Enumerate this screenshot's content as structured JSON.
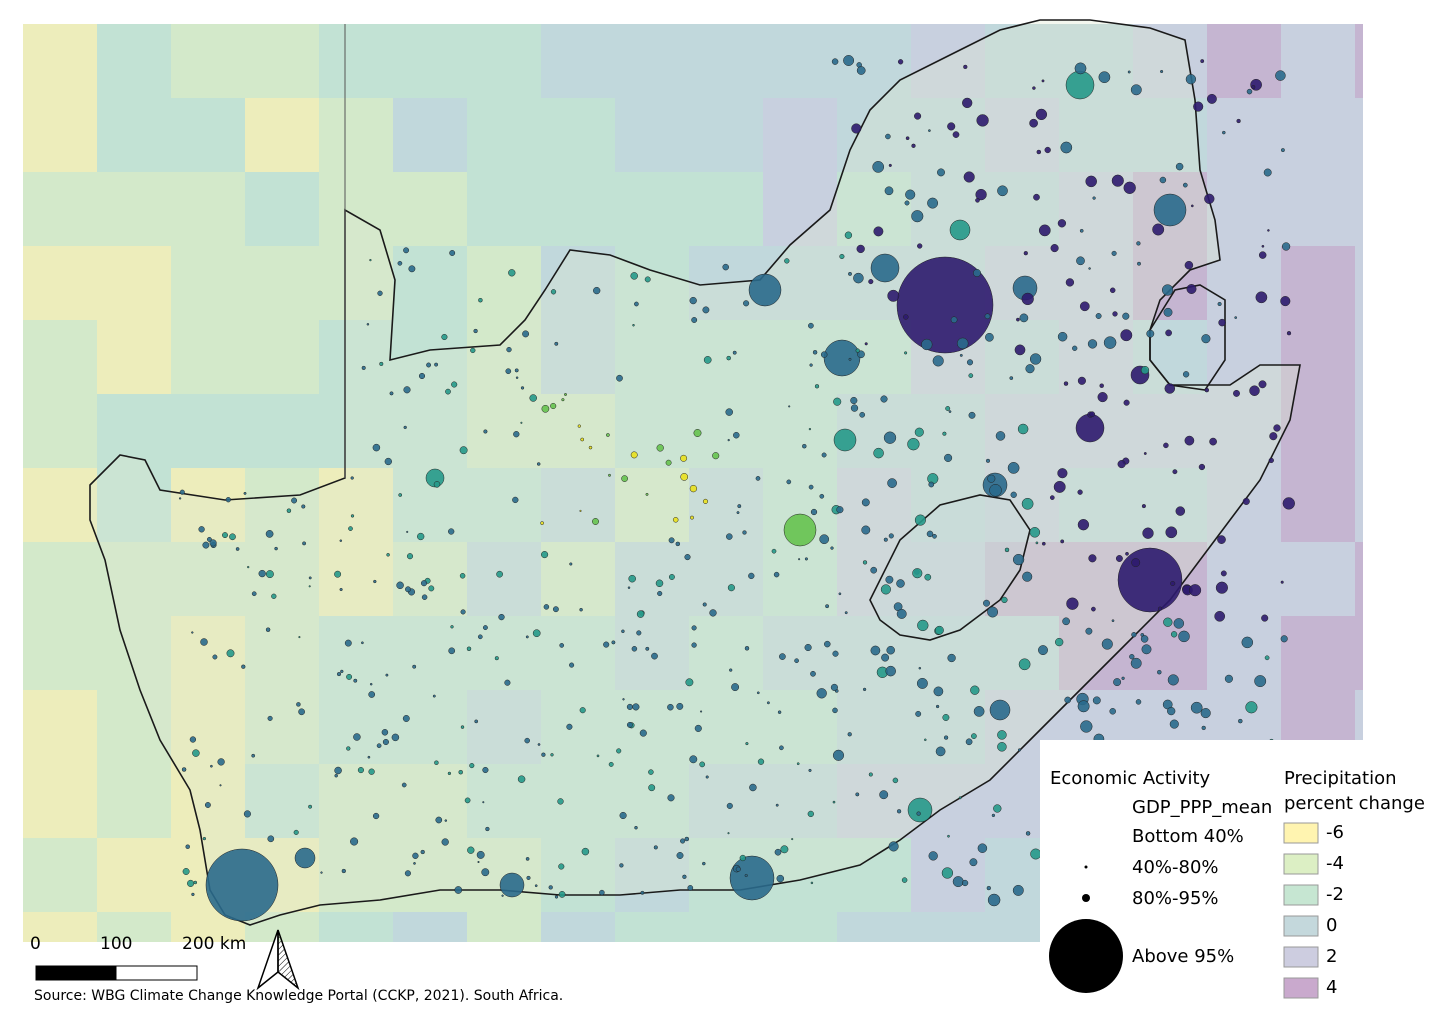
{
  "caption": "Source: WBG Climate Change Knowledge Portal (CCKP, 2021). South Africa.",
  "scale_bar": {
    "labels": [
      "0",
      "100",
      "200 km"
    ]
  },
  "legend_economic": {
    "title": "Economic Activity",
    "field": "GDP_PPP_mean",
    "classes": [
      {
        "label": "Bottom 40%",
        "symbol": "none"
      },
      {
        "label": "40%-80%",
        "symbol": "tiny-dot"
      },
      {
        "label": "80%-95%",
        "symbol": "small-dot"
      },
      {
        "label": "Above 95%",
        "symbol": "large-dot"
      }
    ]
  },
  "legend_precip": {
    "title_line1": "Precipitation",
    "title_line2": "percent change",
    "classes": [
      {
        "label": "-6",
        "color": "#fff4b0"
      },
      {
        "label": "-4",
        "color": "#dcefc4"
      },
      {
        "label": "-2",
        "color": "#c6e6d2"
      },
      {
        "label": "0",
        "color": "#c4d8dc"
      },
      {
        "label": "2",
        "color": "#cdcde0"
      },
      {
        "label": "4",
        "color": "#c9a9cd"
      }
    ]
  },
  "colors": {
    "ocean": "#b8d8dc",
    "land_base": "#dfe8d8",
    "border": "#1a1a1a",
    "bubble_high": "#2e1b6e",
    "bubble_mid": "#2a6a8c",
    "bubble_teal": "#26998a",
    "bubble_green": "#66c24f",
    "bubble_yellow": "#e9e01e"
  },
  "map_features": {
    "north_arrow": "north-arrow-icon"
  }
}
